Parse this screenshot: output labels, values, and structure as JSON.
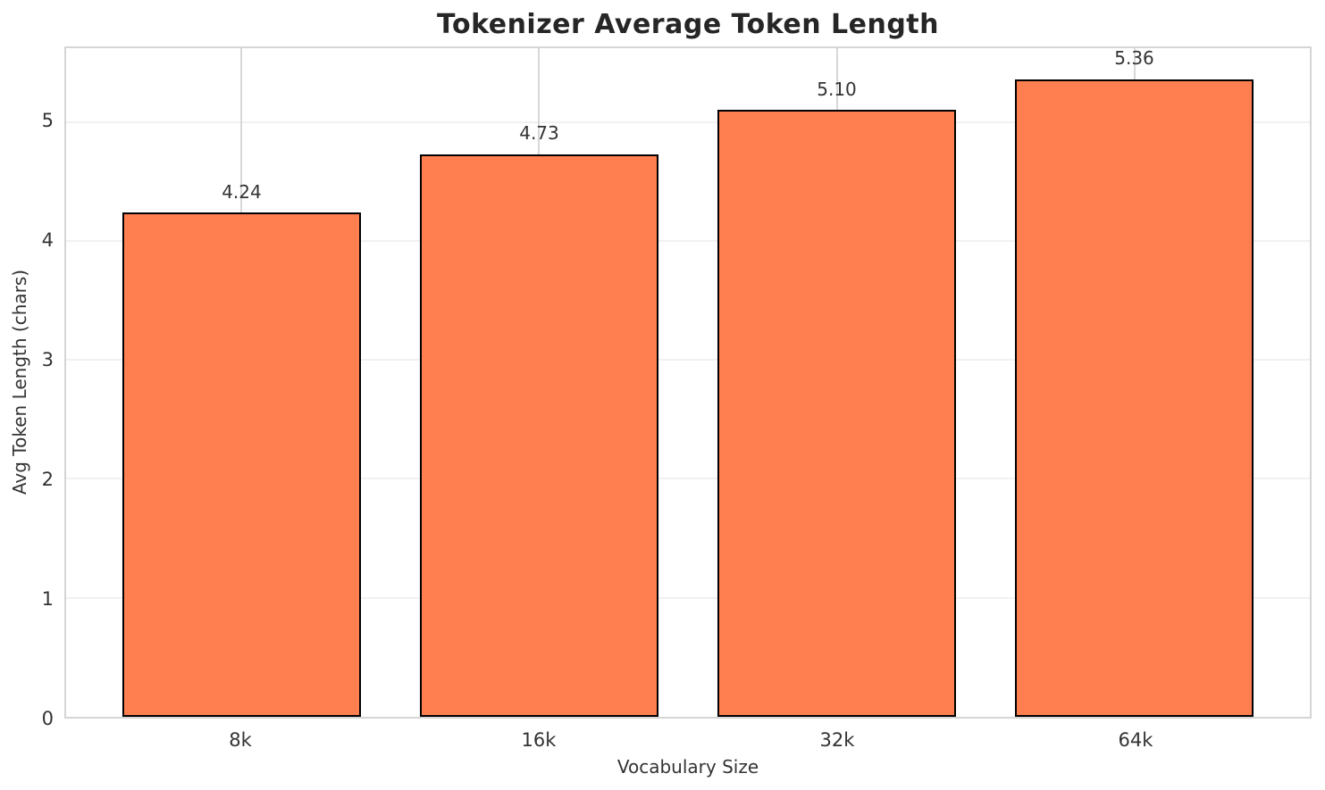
{
  "chart_data": {
    "type": "bar",
    "title": "Tokenizer Average Token Length",
    "xlabel": "Vocabulary Size",
    "ylabel": "Avg Token Length (chars)",
    "categories": [
      "8k",
      "16k",
      "32k",
      "64k"
    ],
    "values": [
      4.24,
      4.73,
      5.1,
      5.36
    ],
    "value_labels": [
      "4.24",
      "4.73",
      "5.10",
      "5.36"
    ],
    "yticks": [
      0,
      1,
      2,
      3,
      4,
      5
    ],
    "ylim": [
      0,
      5.62
    ],
    "xlim": [
      -0.59,
      3.59
    ],
    "bar_width_data": 0.8,
    "grid": true,
    "legend": false,
    "colors": {
      "bar_fill": "#FF7F50",
      "bar_edge": "#000000",
      "grid_horizontal": "#f1f1f1",
      "grid_vertical": "#d8d8d8",
      "spine": "#d5d5d5",
      "text": "#333333",
      "title": "#262626",
      "background": "#ffffff"
    }
  }
}
